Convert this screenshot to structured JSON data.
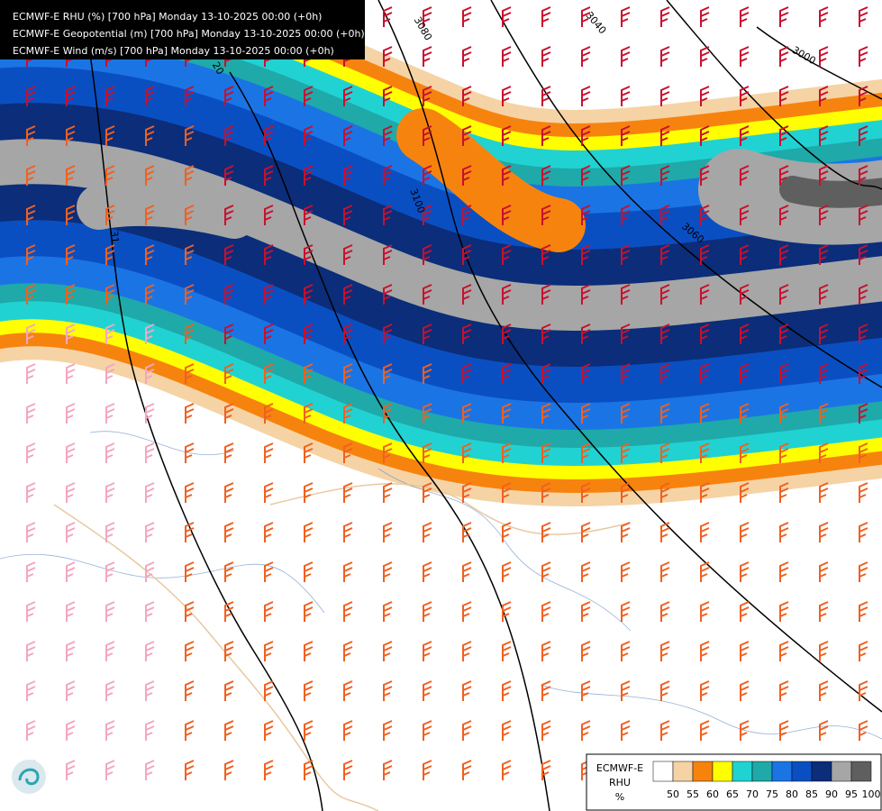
{
  "header": {
    "lines": [
      "ECMWF-E RHU (%) [700 hPa] Monday 13-10-2025 00:00 (+0h)",
      "ECMWF-E Geopotential (m) [700 hPa] Monday 13-10-2025 00:00 (+0h)",
      "ECMWF-E Wind (m/s) [700 hPa] Monday 13-10-2025 00:00 (+0h)"
    ]
  },
  "contour_labels": [
    "3080",
    "3040",
    "3000",
    "3100",
    "3060",
    "20",
    "31"
  ],
  "legend": {
    "title": "ECMWF-E",
    "variable": "RHU",
    "unit": "%",
    "levels": [
      50,
      55,
      60,
      65,
      70,
      75,
      80,
      85,
      90,
      95,
      100
    ],
    "colors": [
      "#ffffff",
      "#f5d3a5",
      "#f7830f",
      "#ffff00",
      "#21d2d2",
      "#1fa9a9",
      "#1b74e4",
      "#0a4fc2",
      "#0b2d7a",
      "#a6a6a6",
      "#5f5f5f"
    ]
  }
}
